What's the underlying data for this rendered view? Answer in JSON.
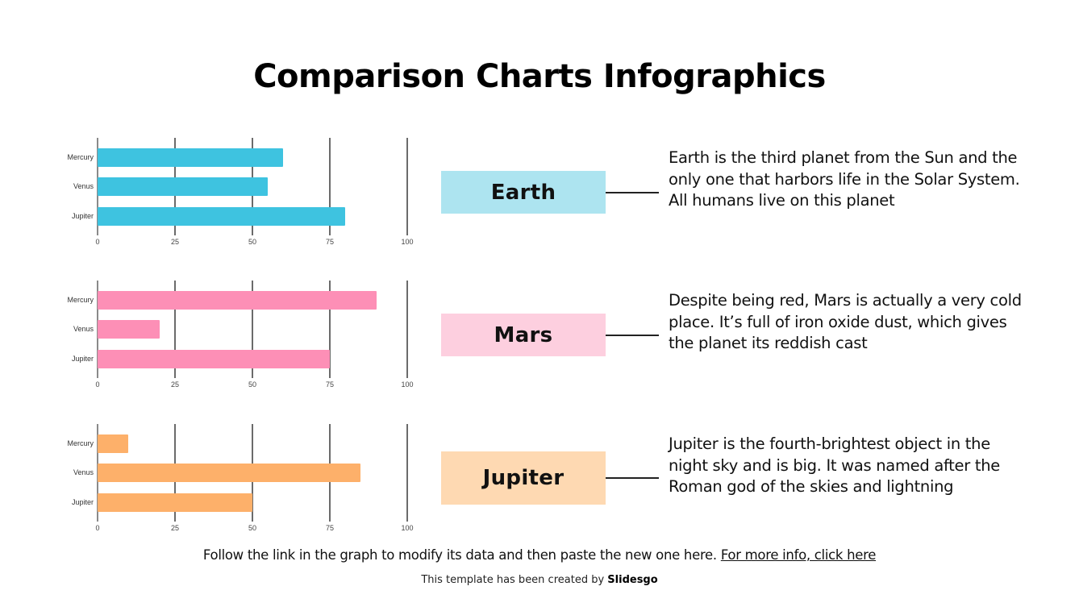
{
  "title": "Comparison Charts Infographics",
  "axis": {
    "ticks": [
      "0",
      "25",
      "50",
      "75",
      "100"
    ],
    "min": 0,
    "max": 100
  },
  "rows": [
    {
      "label": "Earth",
      "label_color": "#ade4f0",
      "bar_color": "#3ec3e0",
      "description": "Earth is the third planet from the Sun and the only one that harbors life in the Solar System. All humans live on this planet",
      "categories": [
        "Mercury",
        "Venus",
        "Jupiter"
      ],
      "values": [
        60,
        55,
        80
      ]
    },
    {
      "label": "Mars",
      "label_color": "#fdcfdf",
      "bar_color": "#fd8fb6",
      "description": "Despite being red, Mars is actually a very cold place. It’s full of iron oxide dust, which gives the planet its reddish cast",
      "categories": [
        "Mercury",
        "Venus",
        "Jupiter"
      ],
      "values": [
        90,
        20,
        75
      ]
    },
    {
      "label": "Jupiter",
      "label_color": "#fed9b2",
      "bar_color": "#fdb06a",
      "description": "Jupiter is the fourth-brightest object in the night sky and is big. It was named after the Roman god of the skies and lightning",
      "categories": [
        "Mercury",
        "Venus",
        "Jupiter"
      ],
      "values": [
        10,
        85,
        50
      ]
    }
  ],
  "footer": {
    "note": "Follow the link in the graph to modify its data and then paste the new one here. ",
    "link": "For more info, click here",
    "credit_prefix": "This template has been created by ",
    "credit_brand": "Slidesgo"
  },
  "chart_data": [
    {
      "type": "bar",
      "orientation": "horizontal",
      "title": "Earth",
      "categories": [
        "Mercury",
        "Venus",
        "Jupiter"
      ],
      "values": [
        60,
        55,
        80
      ],
      "xlabel": "",
      "ylabel": "",
      "xlim": [
        0,
        100
      ],
      "xticks": [
        0,
        25,
        50,
        75,
        100
      ],
      "grid": true,
      "color": "#3ec3e0"
    },
    {
      "type": "bar",
      "orientation": "horizontal",
      "title": "Mars",
      "categories": [
        "Mercury",
        "Venus",
        "Jupiter"
      ],
      "values": [
        90,
        20,
        75
      ],
      "xlabel": "",
      "ylabel": "",
      "xlim": [
        0,
        100
      ],
      "xticks": [
        0,
        25,
        50,
        75,
        100
      ],
      "grid": true,
      "color": "#fd8fb6"
    },
    {
      "type": "bar",
      "orientation": "horizontal",
      "title": "Jupiter",
      "categories": [
        "Mercury",
        "Venus",
        "Jupiter"
      ],
      "values": [
        10,
        85,
        50
      ],
      "xlabel": "",
      "ylabel": "",
      "xlim": [
        0,
        100
      ],
      "xticks": [
        0,
        25,
        50,
        75,
        100
      ],
      "grid": true,
      "color": "#fdb06a"
    }
  ]
}
